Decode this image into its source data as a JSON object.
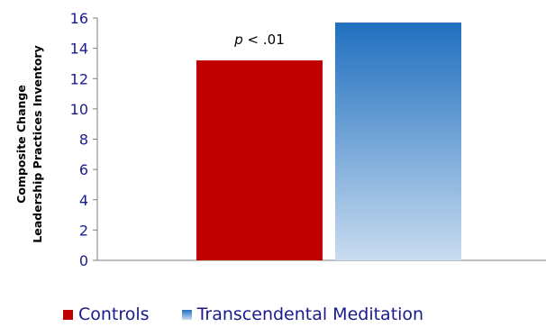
{
  "chart_data": {
    "type": "bar",
    "title": "",
    "xlabel": "",
    "ylabel": [
      "Composite Change",
      "Leadership Practices Inventory"
    ],
    "ylim": [
      0,
      16
    ],
    "yticks": [
      0,
      2,
      4,
      6,
      8,
      10,
      12,
      14,
      16
    ],
    "grid": false,
    "legend_position": "bottom",
    "series": [
      {
        "name": "Controls",
        "values": [
          13.2
        ],
        "color": "#c00000",
        "fill": "solid"
      },
      {
        "name": "Transcendental Meditation",
        "values": [
          15.7
        ],
        "color": "#1f6fbf",
        "fill": "gradient",
        "gradient_end_color": "#c9dcf0"
      }
    ],
    "annotations": [
      {
        "italic": "p",
        "rest": " < .01"
      }
    ]
  }
}
